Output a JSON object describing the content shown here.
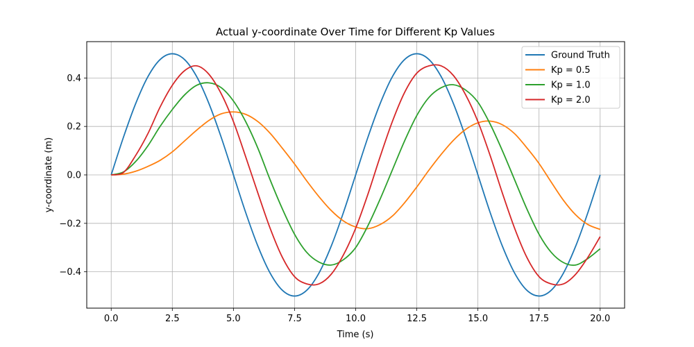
{
  "chart_data": {
    "type": "line",
    "title": "Actual y-coordinate Over Time for Different Kp Values",
    "xlabel": "Time (s)",
    "ylabel": "y-coordinate (m)",
    "xlim": [
      -1.0,
      21.0
    ],
    "ylim": [
      -0.55,
      0.55
    ],
    "xticks": [
      0.0,
      2.5,
      5.0,
      7.5,
      10.0,
      12.5,
      15.0,
      17.5,
      20.0
    ],
    "xtick_labels": [
      "0.0",
      "2.5",
      "5.0",
      "7.5",
      "10.0",
      "12.5",
      "15.0",
      "17.5",
      "20.0"
    ],
    "yticks": [
      -0.4,
      -0.2,
      0.0,
      0.2,
      0.4
    ],
    "ytick_labels": [
      "−0.4",
      "−0.2",
      "0.0",
      "0.2",
      "0.4"
    ],
    "grid": true,
    "legend_position": "top-right",
    "series": [
      {
        "name": "Ground Truth",
        "color": "#1f77b4",
        "x": [
          0,
          0.5,
          1,
          1.5,
          2,
          2.5,
          3,
          3.5,
          4,
          4.5,
          5,
          5.5,
          6,
          6.5,
          7,
          7.5,
          8,
          8.5,
          9,
          9.5,
          10,
          10.5,
          11,
          11.5,
          12,
          12.5,
          13,
          13.5,
          14,
          14.5,
          15,
          15.5,
          16,
          16.5,
          17,
          17.5,
          18,
          18.5,
          19,
          19.5,
          20
        ],
        "y": [
          0.0,
          0.155,
          0.294,
          0.405,
          0.476,
          0.5,
          0.476,
          0.405,
          0.294,
          0.155,
          0.0,
          -0.155,
          -0.294,
          -0.405,
          -0.476,
          -0.5,
          -0.476,
          -0.405,
          -0.294,
          -0.155,
          0.0,
          0.155,
          0.294,
          0.405,
          0.476,
          0.5,
          0.476,
          0.405,
          0.294,
          0.155,
          0.0,
          -0.155,
          -0.294,
          -0.405,
          -0.476,
          -0.5,
          -0.476,
          -0.405,
          -0.294,
          -0.155,
          0.0
        ]
      },
      {
        "name": "Kp = 0.5",
        "color": "#ff7f0e",
        "x": [
          0,
          0.5,
          1,
          1.5,
          2,
          2.5,
          3,
          3.5,
          4,
          4.5,
          5,
          5.5,
          6,
          6.5,
          7,
          7.5,
          8,
          8.5,
          9,
          9.5,
          10,
          10.5,
          11,
          11.5,
          12,
          12.5,
          13,
          13.5,
          14,
          14.5,
          15,
          15.5,
          16,
          16.5,
          17,
          17.5,
          18,
          18.5,
          19,
          19.5,
          20
        ],
        "y": [
          0.0,
          0.003,
          0.015,
          0.035,
          0.06,
          0.095,
          0.14,
          0.185,
          0.225,
          0.252,
          0.26,
          0.25,
          0.22,
          0.172,
          0.11,
          0.045,
          -0.025,
          -0.09,
          -0.147,
          -0.19,
          -0.215,
          -0.222,
          -0.205,
          -0.17,
          -0.115,
          -0.05,
          0.02,
          0.085,
          0.143,
          0.188,
          0.215,
          0.222,
          0.207,
          0.17,
          0.112,
          0.047,
          -0.03,
          -0.105,
          -0.165,
          -0.205,
          -0.225
        ]
      },
      {
        "name": "Kp = 1.0",
        "color": "#2ca02c",
        "x": [
          0,
          0.5,
          1,
          1.5,
          2,
          2.5,
          3,
          3.5,
          4,
          4.5,
          5,
          5.5,
          6,
          6.5,
          7,
          7.5,
          8,
          8.5,
          9,
          9.5,
          10,
          10.5,
          11,
          11.5,
          12,
          12.5,
          13,
          13.5,
          14,
          14.5,
          15,
          15.5,
          16,
          16.5,
          17,
          17.5,
          18,
          18.5,
          19,
          19.5,
          20
        ],
        "y": [
          0.0,
          0.012,
          0.055,
          0.12,
          0.2,
          0.27,
          0.33,
          0.37,
          0.38,
          0.36,
          0.305,
          0.22,
          0.11,
          -0.02,
          -0.14,
          -0.245,
          -0.32,
          -0.36,
          -0.372,
          -0.35,
          -0.3,
          -0.21,
          -0.1,
          0.02,
          0.14,
          0.245,
          0.32,
          0.36,
          0.372,
          0.35,
          0.3,
          0.21,
          0.1,
          -0.02,
          -0.14,
          -0.245,
          -0.32,
          -0.362,
          -0.372,
          -0.345,
          -0.305
        ]
      },
      {
        "name": "Kp = 2.0",
        "color": "#d62728",
        "x": [
          0,
          0.5,
          1,
          1.5,
          2,
          2.5,
          3,
          3.5,
          4,
          4.5,
          5,
          5.5,
          6,
          6.5,
          7,
          7.5,
          8,
          8.5,
          9,
          9.5,
          10,
          10.5,
          11,
          11.5,
          12,
          12.5,
          13,
          13.5,
          14,
          14.5,
          15,
          15.5,
          16,
          16.5,
          17,
          17.5,
          18,
          18.5,
          19,
          19.5,
          20
        ],
        "y": [
          0.0,
          0.01,
          0.08,
          0.17,
          0.28,
          0.37,
          0.43,
          0.45,
          0.415,
          0.335,
          0.22,
          0.075,
          -0.075,
          -0.22,
          -0.34,
          -0.42,
          -0.45,
          -0.45,
          -0.41,
          -0.33,
          -0.22,
          -0.08,
          0.075,
          0.22,
          0.34,
          0.42,
          0.45,
          0.45,
          0.41,
          0.33,
          0.22,
          0.08,
          -0.075,
          -0.22,
          -0.34,
          -0.42,
          -0.45,
          -0.45,
          -0.41,
          -0.34,
          -0.255
        ]
      }
    ]
  }
}
